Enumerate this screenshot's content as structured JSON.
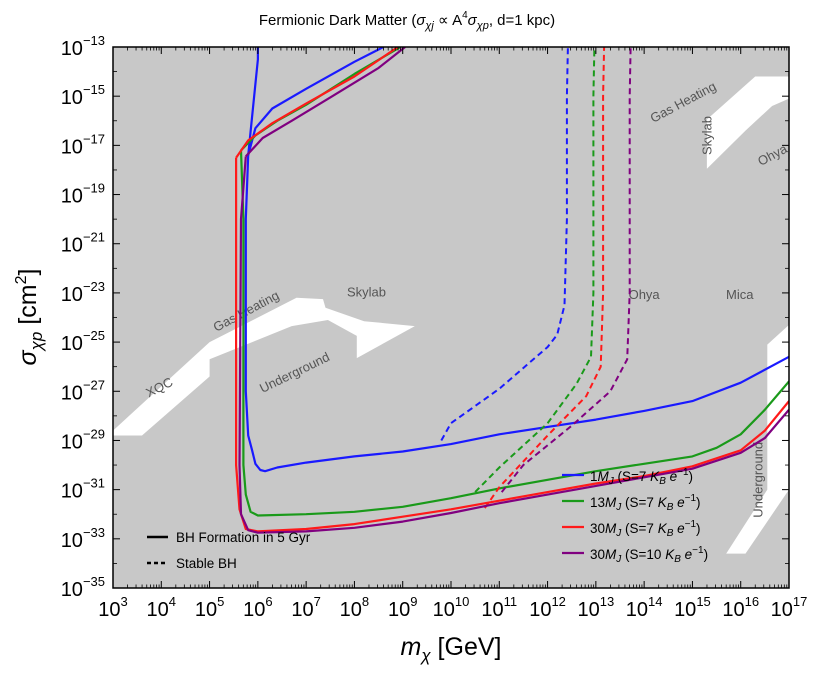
{
  "chart_data": {
    "type": "line",
    "title": {
      "pre": "Fermionic Dark Matter (",
      "sub1": "χj",
      "mid1": " ∝ A",
      "sup": "4",
      "mid2": "σ",
      "sub2": "χp",
      "post": ",  d=1 kpc)",
      "s1": "σ"
    },
    "xlabel": {
      "main": "m",
      "sub": "χ",
      "unit": " [GeV]"
    },
    "ylabel": {
      "main": "σ",
      "sub": "χp",
      "unit": " [cm",
      "sup": "2",
      "close": "]"
    },
    "x_scale": "log",
    "y_scale": "log",
    "xlim_exp": [
      3,
      17
    ],
    "ylim_exp": [
      -35,
      -13
    ],
    "x_ticks": [
      {
        "base": "10",
        "exp": "3",
        "v": 3
      },
      {
        "base": "10",
        "exp": "4",
        "v": 4
      },
      {
        "base": "10",
        "exp": "5",
        "v": 5
      },
      {
        "base": "10",
        "exp": "6",
        "v": 6
      },
      {
        "base": "10",
        "exp": "7",
        "v": 7
      },
      {
        "base": "10",
        "exp": "8",
        "v": 8
      },
      {
        "base": "10",
        "exp": "9",
        "v": 9
      },
      {
        "base": "10",
        "exp": "10",
        "v": 10
      },
      {
        "base": "10",
        "exp": "11",
        "v": 11
      },
      {
        "base": "10",
        "exp": "12",
        "v": 12
      },
      {
        "base": "10",
        "exp": "13",
        "v": 13
      },
      {
        "base": "10",
        "exp": "14",
        "v": 14
      },
      {
        "base": "10",
        "exp": "15",
        "v": 15
      },
      {
        "base": "10",
        "exp": "16",
        "v": 16
      },
      {
        "base": "10",
        "exp": "17",
        "v": 17
      }
    ],
    "y_ticks": [
      {
        "base": "10",
        "exp": "−13",
        "v": -13
      },
      {
        "base": "10",
        "exp": "−15",
        "v": -15
      },
      {
        "base": "10",
        "exp": "−17",
        "v": -17
      },
      {
        "base": "10",
        "exp": "−19",
        "v": -19
      },
      {
        "base": "10",
        "exp": "−21",
        "v": -21
      },
      {
        "base": "10",
        "exp": "−23",
        "v": -23
      },
      {
        "base": "10",
        "exp": "−25",
        "v": -25
      },
      {
        "base": "10",
        "exp": "−27",
        "v": -27
      },
      {
        "base": "10",
        "exp": "−29",
        "v": -29
      },
      {
        "base": "10",
        "exp": "−31",
        "v": -31
      },
      {
        "base": "10",
        "exp": "−33",
        "v": -33
      },
      {
        "base": "10",
        "exp": "−35",
        "v": -35
      }
    ],
    "colors": {
      "excluded": "#c8c8c8",
      "blue": "#1a1aff",
      "green": "#1a9a1a",
      "red": "#ff1a1a",
      "purple": "#800080",
      "region_label": "#555555"
    },
    "excluded_white_regions_log": [
      {
        "name": "XQC-GasHeating-Underground-Skylab gap",
        "points": [
          [
            3.0,
            -28.8
          ],
          [
            3.6,
            -28.8
          ],
          [
            5.0,
            -26.4
          ],
          [
            5.0,
            -25.7
          ],
          [
            6.7,
            -24.35
          ],
          [
            7.45,
            -24.1
          ],
          [
            8.05,
            -24.75
          ],
          [
            8.05,
            -25.65
          ],
          [
            9.25,
            -24.35
          ],
          [
            8.2,
            -24.15
          ],
          [
            7.4,
            -23.6
          ],
          [
            7.35,
            -23.25
          ],
          [
            6.8,
            -23.2
          ],
          [
            5.0,
            -25.0
          ],
          [
            3.0,
            -28.6
          ]
        ]
      },
      {
        "name": "Gas Heating / Skylab / Ohya upper-right gap",
        "points": [
          [
            15.3,
            -15.95
          ],
          [
            16.3,
            -14.2
          ],
          [
            17.0,
            -14.2
          ],
          [
            17.0,
            -15.1
          ],
          [
            16.65,
            -15.4
          ],
          [
            16.1,
            -16.4
          ],
          [
            15.3,
            -17.95
          ]
        ]
      },
      {
        "name": "Mica / Underground right gap",
        "points": [
          [
            16.55,
            -25.1
          ],
          [
            17.0,
            -24.3
          ],
          [
            17.0,
            -31.0
          ],
          [
            16.1,
            -33.6
          ],
          [
            15.7,
            -33.6
          ],
          [
            16.55,
            -31.0
          ]
        ]
      }
    ],
    "region_labels": [
      {
        "text": "XQC",
        "x": 4.0,
        "y": -27.0,
        "angle": -27
      },
      {
        "text": "Gas Heating",
        "x": 5.8,
        "y": -23.9,
        "angle": -28
      },
      {
        "text": "Underground",
        "x": 6.8,
        "y": -26.4,
        "angle": -26
      },
      {
        "text": "Skylab",
        "x": 8.25,
        "y": -23.15,
        "angle": 0
      },
      {
        "text": "Ohya",
        "x": 14.0,
        "y": -23.25,
        "angle": 0
      },
      {
        "text": "Mica",
        "x": 15.98,
        "y": -23.25,
        "angle": 0
      },
      {
        "text": "Gas Heating",
        "x": 14.85,
        "y": -15.4,
        "angle": -28
      },
      {
        "text": "Skylab",
        "x": 15.4,
        "y": -16.6,
        "angle": -90
      },
      {
        "text": "Ohya",
        "x": 16.7,
        "y": -17.55,
        "angle": -28
      },
      {
        "text": "Underground",
        "x": 16.45,
        "y": -30.6,
        "angle": -90
      }
    ],
    "series": [
      {
        "key": "blue",
        "color": "#1a1aff",
        "legend_coef": "1",
        "legend_s": "7",
        "solid": [
          [
            6.0,
            -13.0
          ],
          [
            6.0,
            -13.5
          ],
          [
            5.8,
            -17.4
          ],
          [
            5.75,
            -20.0
          ],
          [
            5.75,
            -27.0
          ],
          [
            5.8,
            -28.8
          ],
          [
            5.88,
            -29.4
          ],
          [
            5.95,
            -29.95
          ],
          [
            6.05,
            -30.2
          ],
          [
            6.15,
            -30.25
          ],
          [
            6.4,
            -30.1
          ],
          [
            7.0,
            -29.9
          ],
          [
            8.0,
            -29.65
          ],
          [
            9.0,
            -29.45
          ],
          [
            10.0,
            -29.15
          ],
          [
            11.0,
            -28.75
          ],
          [
            12.0,
            -28.45
          ],
          [
            13.0,
            -28.15
          ],
          [
            14.0,
            -27.8
          ],
          [
            15.0,
            -27.4
          ],
          [
            16.0,
            -26.65
          ],
          [
            17.0,
            -25.6
          ]
        ],
        "upper": [
          [
            5.8,
            -17.4
          ],
          [
            5.95,
            -16.3
          ],
          [
            6.3,
            -15.5
          ],
          [
            7.0,
            -14.7
          ],
          [
            8.0,
            -13.6
          ],
          [
            8.6,
            -13.0
          ]
        ],
        "dashed": [
          [
            9.8,
            -29.0
          ],
          [
            10.0,
            -28.3
          ],
          [
            11.0,
            -26.9
          ],
          [
            12.0,
            -25.2
          ],
          [
            12.2,
            -24.7
          ],
          [
            12.35,
            -23.5
          ],
          [
            12.4,
            -20.0
          ],
          [
            12.4,
            -15.0
          ],
          [
            12.42,
            -13.0
          ]
        ]
      },
      {
        "key": "green",
        "color": "#1a9a1a",
        "legend_coef": "13",
        "legend_s": "7",
        "solid": [
          [
            5.65,
            -17.2
          ],
          [
            5.7,
            -20.0
          ],
          [
            5.7,
            -30.0
          ],
          [
            5.75,
            -31.2
          ],
          [
            5.85,
            -31.9
          ],
          [
            6.0,
            -32.05
          ],
          [
            7.0,
            -32.0
          ],
          [
            8.0,
            -31.9
          ],
          [
            9.0,
            -31.7
          ],
          [
            10.0,
            -31.35
          ],
          [
            11.0,
            -30.95
          ],
          [
            12.0,
            -30.6
          ],
          [
            13.0,
            -30.25
          ],
          [
            14.0,
            -29.95
          ],
          [
            15.0,
            -29.65
          ],
          [
            15.5,
            -29.3
          ],
          [
            16.0,
            -28.75
          ],
          [
            16.5,
            -27.75
          ],
          [
            17.0,
            -26.6
          ]
        ],
        "upper": [
          [
            5.65,
            -17.2
          ],
          [
            5.95,
            -16.6
          ],
          [
            6.4,
            -16.0
          ],
          [
            7.0,
            -15.35
          ],
          [
            8.0,
            -14.1
          ],
          [
            8.95,
            -13.0
          ]
        ],
        "dashed": [
          [
            10.5,
            -31.1
          ],
          [
            11.0,
            -30.1
          ],
          [
            12.0,
            -28.3
          ],
          [
            12.6,
            -26.7
          ],
          [
            12.9,
            -25.6
          ],
          [
            12.95,
            -23.0
          ],
          [
            12.95,
            -19.0
          ],
          [
            12.95,
            -15.0
          ],
          [
            12.97,
            -13.0
          ]
        ]
      },
      {
        "key": "red",
        "color": "#ff1a1a",
        "legend_coef": "30",
        "legend_s": "7",
        "solid": [
          [
            5.55,
            -17.5
          ],
          [
            5.55,
            -20.0
          ],
          [
            5.55,
            -30.0
          ],
          [
            5.62,
            -31.8
          ],
          [
            5.75,
            -32.6
          ],
          [
            6.0,
            -32.7
          ],
          [
            7.0,
            -32.6
          ],
          [
            8.0,
            -32.4
          ],
          [
            9.0,
            -32.1
          ],
          [
            10.0,
            -31.8
          ],
          [
            11.0,
            -31.45
          ],
          [
            12.0,
            -31.1
          ],
          [
            13.0,
            -30.75
          ],
          [
            14.0,
            -30.45
          ],
          [
            15.0,
            -30.05
          ],
          [
            16.0,
            -29.4
          ],
          [
            16.5,
            -28.6
          ],
          [
            17.0,
            -27.4
          ]
        ],
        "upper": [
          [
            5.55,
            -17.5
          ],
          [
            5.8,
            -16.8
          ],
          [
            6.3,
            -16.1
          ],
          [
            7.0,
            -15.3
          ],
          [
            8.0,
            -14.2
          ],
          [
            8.9,
            -13.0
          ]
        ],
        "dashed": [
          [
            10.7,
            -31.75
          ],
          [
            11.0,
            -30.9
          ],
          [
            12.0,
            -28.8
          ],
          [
            12.8,
            -27.2
          ],
          [
            13.1,
            -26.0
          ],
          [
            13.15,
            -23.0
          ],
          [
            13.15,
            -19.0
          ],
          [
            13.15,
            -15.0
          ],
          [
            13.17,
            -13.0
          ]
        ]
      },
      {
        "key": "purple",
        "color": "#800080",
        "legend_coef": "30",
        "legend_s": "10",
        "solid": [
          [
            5.75,
            -17.45
          ],
          [
            5.65,
            -20.0
          ],
          [
            5.62,
            -30.0
          ],
          [
            5.65,
            -32.0
          ],
          [
            5.8,
            -32.65
          ],
          [
            6.0,
            -32.75
          ],
          [
            7.0,
            -32.7
          ],
          [
            8.0,
            -32.55
          ],
          [
            9.0,
            -32.3
          ],
          [
            10.0,
            -31.95
          ],
          [
            11.0,
            -31.55
          ],
          [
            12.0,
            -31.2
          ],
          [
            13.0,
            -30.85
          ],
          [
            14.0,
            -30.5
          ],
          [
            15.0,
            -30.15
          ],
          [
            16.0,
            -29.5
          ],
          [
            16.5,
            -28.9
          ],
          [
            17.0,
            -27.75
          ]
        ],
        "upper": [
          [
            5.75,
            -17.45
          ],
          [
            6.1,
            -16.7
          ],
          [
            6.7,
            -16.0
          ],
          [
            7.5,
            -15.05
          ],
          [
            8.5,
            -13.85
          ],
          [
            9.05,
            -13.0
          ]
        ],
        "dashed": [
          [
            11.05,
            -31.1
          ],
          [
            11.5,
            -30.0
          ],
          [
            12.5,
            -28.4
          ],
          [
            13.3,
            -27.0
          ],
          [
            13.65,
            -25.7
          ],
          [
            13.7,
            -23.0
          ],
          [
            13.7,
            -19.0
          ],
          [
            13.7,
            -15.0
          ],
          [
            13.72,
            -13.0
          ]
        ]
      }
    ],
    "legend_series_text": {
      "mj": "M",
      "mj_sub": "J",
      "open": " (S=",
      "kb": "K",
      "kb_sub": "B",
      "e": " e",
      "e_sup": "−1",
      "close": ")"
    },
    "legend_line_style": [
      {
        "style": "solid",
        "label": "BH Formation in 5 Gyr"
      },
      {
        "style": "dashed",
        "label": "Stable BH"
      }
    ]
  }
}
